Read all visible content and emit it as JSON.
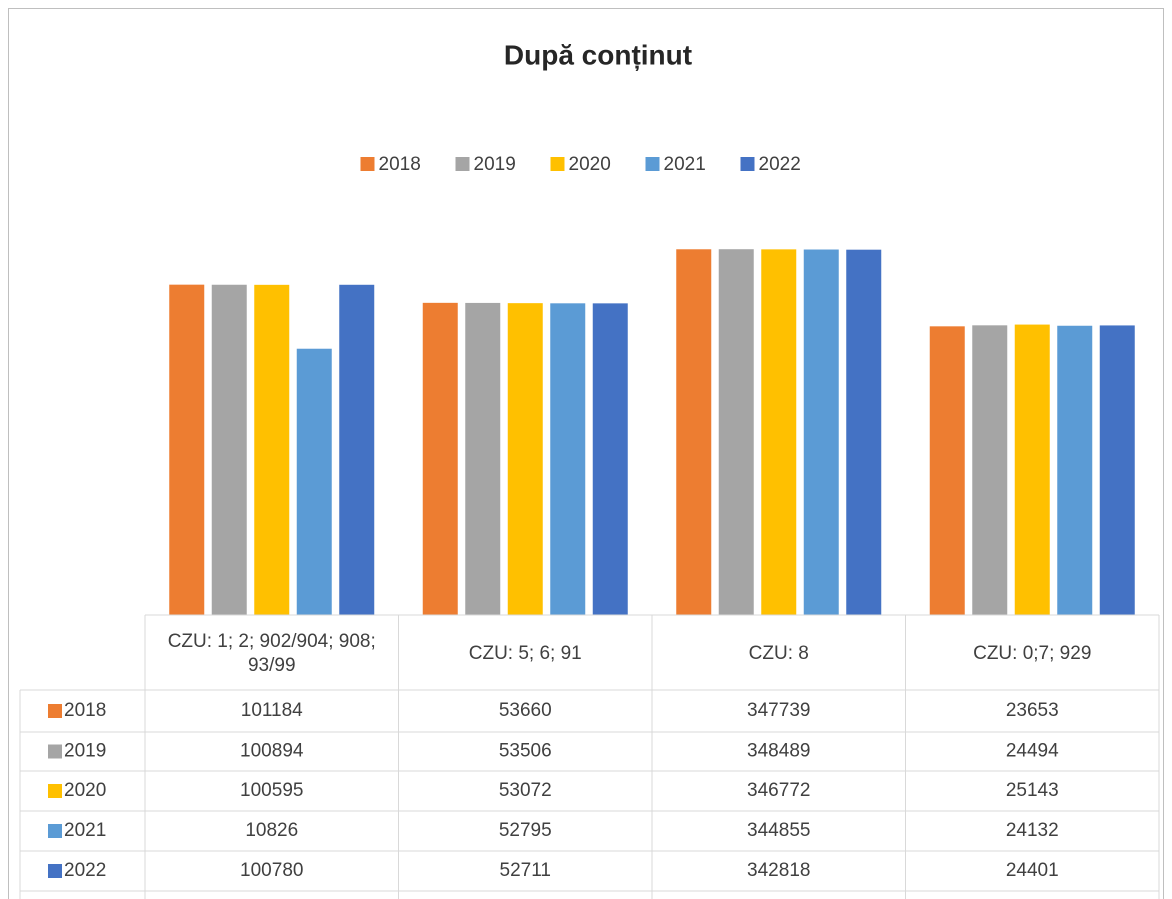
{
  "chart_data": {
    "type": "bar",
    "title": "După conținut",
    "categories": [
      "CZU: 1; 2; 902/904; 908; 93/99",
      "CZU: 5; 6; 91",
      "CZU: 8",
      "CZU: 0;7; 929"
    ],
    "series": [
      {
        "name": "2018",
        "color": "#ed7d31",
        "values": [
          101184,
          53660,
          347739,
          23653
        ]
      },
      {
        "name": "2019",
        "color": "#a5a5a5",
        "values": [
          100894,
          53506,
          348489,
          24494
        ]
      },
      {
        "name": "2020",
        "color": "#ffc000",
        "values": [
          100595,
          53072,
          346772,
          25143
        ]
      },
      {
        "name": "2021",
        "color": "#5b9bd5",
        "values": [
          10826,
          52795,
          344855,
          24132
        ]
      },
      {
        "name": "2022",
        "color": "#4472c4",
        "values": [
          100780,
          52711,
          342818,
          24401
        ]
      }
    ],
    "ylim": [
      1,
      1000000
    ],
    "log_scale": true,
    "legend": "top",
    "data_table": true
  }
}
